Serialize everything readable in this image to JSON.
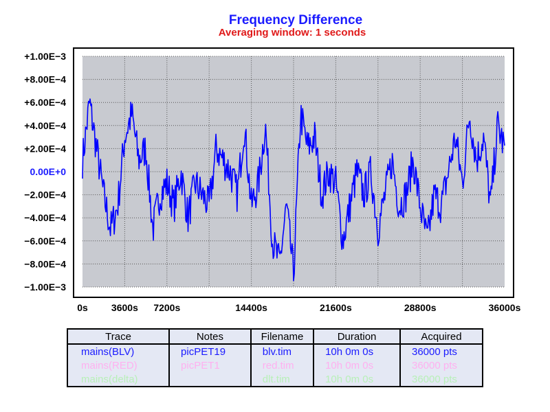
{
  "chart_data": {
    "type": "line",
    "title": "Frequency Difference",
    "subtitle": "Averaging window: 1 seconds",
    "xlabel": "",
    "ylabel": "",
    "xlim": [
      0,
      36000
    ],
    "ylim": [
      -0.001,
      0.001
    ],
    "x_ticks": [
      "0s",
      "3600s",
      "7200s",
      "14400s",
      "21600s",
      "28800s",
      "36000s"
    ],
    "x_tick_values": [
      0,
      3600,
      7200,
      14400,
      21600,
      28800,
      36000
    ],
    "y_ticks": [
      "+1.00E−3",
      "+8.00E−4",
      "+6.00E−4",
      "+4.00E−4",
      "+2.00E−4",
      "0.00E+0",
      "−2.00E−4",
      "−4.00E−4",
      "−6.00E−4",
      "−8.00E−4",
      "−1.00E−3"
    ],
    "y_tick_values": [
      0.001,
      0.0008,
      0.0006,
      0.0004,
      0.0002,
      0,
      -0.0002,
      -0.0004,
      -0.0006,
      -0.0008,
      -0.001
    ],
    "grid": true,
    "plot_background": "#c8cad0",
    "series": [
      {
        "name": "mains(BLV)",
        "color": "#0000ff",
        "x": [
          0,
          600,
          1200,
          1800,
          2400,
          3000,
          3600,
          4200,
          4800,
          5400,
          6000,
          6600,
          7200,
          7800,
          8400,
          9000,
          9600,
          10200,
          10800,
          11400,
          12000,
          12600,
          13200,
          13800,
          14400,
          15000,
          15600,
          16200,
          16800,
          17400,
          18000,
          18600,
          19200,
          19800,
          20400,
          21000,
          21600,
          22200,
          22800,
          23400,
          24000,
          24600,
          25200,
          25800,
          26400,
          27000,
          27600,
          28200,
          28800,
          29400,
          30000,
          30600,
          31200,
          31800,
          32400,
          33000,
          33600,
          34200,
          34800,
          35400,
          36000
        ],
        "values": [
          0.0001,
          0.0006,
          0.0002,
          -0.0002,
          -0.0005,
          -0.0003,
          0.0003,
          0.0005,
          0.0001,
          0.0002,
          -0.0005,
          -0.0002,
          -0.0001,
          -0.0003,
          0.0,
          -0.0004,
          -0.0001,
          -0.0002,
          -0.0003,
          0.0002,
          0.0001,
          0.0,
          -0.0002,
          0.0004,
          -0.0003,
          -0.0001,
          0.0004,
          -0.0006,
          -0.0008,
          -0.0003,
          -0.0009,
          0.0005,
          0.0002,
          0.0003,
          -0.0002,
          0.0,
          -0.0001,
          -0.0006,
          -0.0003,
          0.0,
          -0.0002,
          0.0,
          -0.0005,
          -0.0002,
          0.0001,
          -0.0003,
          -0.0002,
          0.0001,
          -0.0003,
          -0.0006,
          -0.0002,
          -0.0003,
          0.0,
          0.0003,
          -0.0001,
          0.0005,
          0.0001,
          0.0003,
          -0.0003,
          0.0004,
          0.0002
        ]
      }
    ]
  },
  "legend": {
    "headers": [
      "Trace",
      "Notes",
      "Filename",
      "Duration",
      "Acquired"
    ],
    "rows": [
      {
        "trace": "mains(BLV)",
        "notes": "picPET19",
        "filename": "blv.tim",
        "duration": "10h 0m 0s",
        "acquired": "36000 pts",
        "color": "#1a1aff"
      },
      {
        "trace": "mains(RED)",
        "notes": "picPET1",
        "filename": "red.tim",
        "duration": "10h 0m 0s",
        "acquired": "36000 pts",
        "color": "#ffb0f0"
      },
      {
        "trace": "mains(delta)",
        "notes": "",
        "filename": "dlt.tim",
        "duration": "10h 0m 0s",
        "acquired": "36000 pts",
        "color": "#b8f0b8"
      }
    ]
  }
}
